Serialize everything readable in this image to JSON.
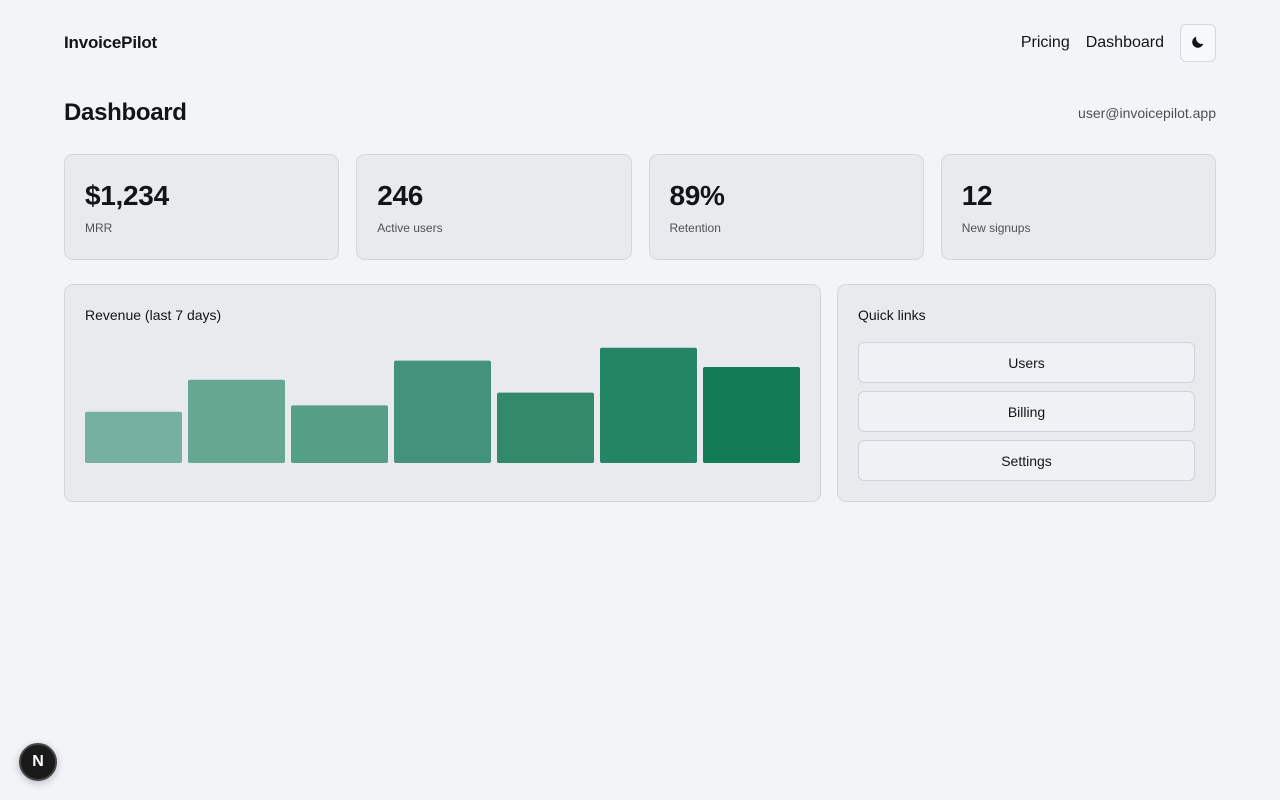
{
  "header": {
    "brand": "InvoicePilot",
    "nav": [
      {
        "label": "Pricing"
      },
      {
        "label": "Dashboard"
      }
    ],
    "theme_toggle_icon": "moon-icon"
  },
  "page": {
    "title": "Dashboard",
    "user_email": "user@invoicepilot.app"
  },
  "stats": [
    {
      "value": "$1,234",
      "label": "MRR"
    },
    {
      "value": "246",
      "label": "Active users"
    },
    {
      "value": "89%",
      "label": "Retention"
    },
    {
      "value": "12",
      "label": "New signups"
    }
  ],
  "revenue": {
    "title": "Revenue (last 7 days)"
  },
  "chart_data": {
    "type": "bar",
    "categories": [
      "",
      "",
      "",
      "",
      "",
      "",
      ""
    ],
    "values": [
      48,
      78,
      54,
      96,
      66,
      108,
      90
    ],
    "ylim": [
      0,
      120
    ],
    "grid": false,
    "colors": [
      "#76b09e",
      "#66a791",
      "#549f86",
      "#43937a",
      "#338a6b",
      "#238563",
      "#127b54"
    ]
  },
  "quick_links": {
    "title": "Quick links",
    "items": [
      {
        "label": "Users"
      },
      {
        "label": "Billing"
      },
      {
        "label": "Settings"
      }
    ]
  },
  "dev_badge": {
    "letter": "N",
    "icon": "nextjs-icon"
  }
}
